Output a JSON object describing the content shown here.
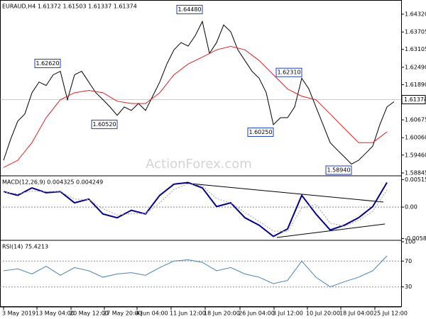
{
  "chart_data": [
    {
      "type": "line",
      "title": "EURAUD,H4 1.61372 1.61503 1.61337 1.61374",
      "watermark": "ActionForex.com",
      "xlim": [
        0,
        55
      ],
      "ylim": [
        1.5877,
        1.6476
      ],
      "yticks": [
        {
          "value": 1.6432,
          "label": "1.64320"
        },
        1.63705,
        1.63105,
        {
          "value": 1.6249,
          "label": "1.62490"
        },
        {
          "value": 1.6189,
          "label": "1.61890"
        },
        1.60675,
        {
          "value": 1.6006,
          "label": "1.60060"
        },
        {
          "value": 1.5946,
          "label": "1.59460"
        },
        1.58845
      ],
      "last": 1.61374,
      "series": [
        {
          "color": "#000000",
          "width": 1,
          "style": "solid",
          "x": [
            0,
            1,
            2,
            3,
            4,
            5,
            6,
            7,
            8,
            9,
            10,
            11,
            12,
            13,
            14,
            15,
            16,
            17,
            18,
            19,
            20,
            21,
            22,
            23,
            24,
            25,
            26,
            27,
            28,
            29,
            30,
            31,
            32,
            33,
            34,
            35,
            36,
            37,
            38,
            39,
            40,
            41,
            42,
            43,
            44,
            45,
            46,
            47,
            48,
            49,
            50,
            51,
            52,
            53,
            54,
            55
          ],
          "values": [
            1.5928,
            1.6001,
            1.6063,
            1.6088,
            1.6161,
            1.6198,
            1.6186,
            1.6223,
            1.6235,
            1.6137,
            1.6223,
            1.6235,
            1.6198,
            1.6161,
            1.6137,
            1.6112,
            1.6083,
            1.6112,
            1.61,
            1.6124,
            1.61,
            1.6149,
            1.6198,
            1.626,
            1.6309,
            1.6334,
            1.6322,
            1.6358,
            1.6407,
            1.6297,
            1.6334,
            1.6395,
            1.6371,
            1.6309,
            1.6272,
            1.6235,
            1.6211,
            1.6161,
            1.6051,
            1.6075,
            1.6075,
            1.6112,
            1.6211,
            1.6174,
            1.6112,
            1.6051,
            1.5989,
            1.5964,
            1.594,
            1.5915,
            1.5928,
            1.5952,
            1.5977,
            1.6051,
            1.6112,
            1.613
          ]
        },
        {
          "color": "#e02020",
          "width": 1,
          "style": "solid",
          "x": [
            0,
            2,
            4,
            6,
            8,
            10,
            12,
            14,
            16,
            18,
            20,
            22,
            24,
            26,
            28,
            30,
            32,
            34,
            36,
            38,
            40,
            42,
            44,
            46,
            48,
            50,
            52,
            54
          ],
          "values": [
            1.5903,
            1.5928,
            1.5989,
            1.6075,
            1.6137,
            1.6161,
            1.6169,
            1.6161,
            1.6132,
            1.6124,
            1.6124,
            1.6161,
            1.6223,
            1.626,
            1.6284,
            1.6309,
            1.6321,
            1.6309,
            1.6272,
            1.6223,
            1.6174,
            1.6149,
            1.6137,
            1.6088,
            1.6038,
            1.5989,
            1.5989,
            1.6026
          ]
        }
      ],
      "annotations": [
        {
          "label": "1.64480",
          "value": 1.6448,
          "x": 28
        },
        {
          "label": "1.62620",
          "value": 1.6262,
          "x": 8
        },
        {
          "label": "1.60520",
          "value": 1.6052,
          "x": 16
        },
        {
          "label": "1.60250",
          "value": 1.6025,
          "x": 38
        },
        {
          "label": "1.62310",
          "value": 1.6231,
          "x": 42
        },
        {
          "label": "1.58940",
          "value": 1.5894,
          "x": 49
        }
      ]
    },
    {
      "type": "line",
      "title": "MACD(12,26,9) 0.004325 0.004249",
      "xlim": [
        0,
        55
      ],
      "ylim": [
        -0.0061,
        0.0056
      ],
      "yticks": [
        0.005154,
        {
          "value": 0,
          "label": "0.00"
        },
        -0.005887
      ],
      "levels": [
        0
      ],
      "series": [
        {
          "color": "#00008b",
          "width": 2,
          "style": "solid",
          "x": [
            0,
            2,
            4,
            6,
            8,
            10,
            12,
            14,
            16,
            18,
            20,
            22,
            24,
            26,
            28,
            30,
            32,
            34,
            36,
            38,
            40,
            42,
            44,
            46,
            48,
            50,
            52,
            54
          ],
          "values": [
            0.0029,
            0.0022,
            0.0036,
            0.0027,
            0.0029,
            0.0008,
            0.0015,
            -0.0013,
            -0.002,
            -0.0006,
            -0.0013,
            0.0022,
            0.0043,
            0.0046,
            0.0036,
            0.0001,
            0.0008,
            -0.002,
            -0.0034,
            -0.0055,
            -0.0041,
            0.0022,
            -0.0013,
            -0.0043,
            -0.0034,
            -0.002,
            0.0001,
            0.0046
          ]
        },
        {
          "color": "#a0a0a0",
          "width": 1,
          "style": "dotted",
          "x": [
            0,
            2,
            4,
            6,
            8,
            10,
            12,
            14,
            16,
            18,
            20,
            22,
            24,
            26,
            28,
            30,
            32,
            34,
            36,
            38,
            40,
            42,
            44,
            46,
            48,
            50,
            52,
            54
          ],
          "values": [
            0.0028,
            0.0025,
            0.003,
            0.0029,
            0.0029,
            0.0015,
            0.0014,
            -0.0003,
            -0.0015,
            -0.0012,
            -0.0012,
            0.0008,
            0.0033,
            0.0044,
            0.004,
            0.0016,
            0.0008,
            -0.001,
            -0.0027,
            -0.0045,
            -0.0046,
            -0.0002,
            0.0005,
            -0.003,
            -0.0036,
            -0.0025,
            -0.0008,
            0.0032
          ]
        }
      ]
    },
    {
      "type": "line",
      "title": "RSI(14) 75.4213",
      "xlim": [
        0,
        55
      ],
      "ylim": [
        0,
        100
      ],
      "yticks": [
        100,
        70,
        30
      ],
      "levels": [
        70,
        30
      ],
      "xticks": [
        {
          "value": 0,
          "label": "3 May 2019"
        },
        {
          "value": 4.7,
          "label": "13 May 04:00"
        },
        {
          "value": 9.5,
          "label": "20 May 12:00"
        },
        {
          "value": 14.2,
          "label": "27 May 20:00"
        },
        {
          "value": 18.8,
          "label": "4 Jun 04:00"
        },
        {
          "value": 23.6,
          "label": "11 Jun 12:00"
        },
        {
          "value": 28.4,
          "label": "18 Jun 20:00"
        },
        {
          "value": 33.3,
          "label": "26 Jun 04:00"
        },
        {
          "value": 38.1,
          "label": "3 Jul 12:00"
        },
        {
          "value": 42.8,
          "label": "10 Jul 20:00"
        },
        {
          "value": 47.5,
          "label": "18 Jul 04:00"
        },
        {
          "value": 52.3,
          "label": "25 Jul 12:00"
        }
      ],
      "series": [
        {
          "color": "#4682b4",
          "width": 1,
          "style": "solid",
          "x": [
            0,
            2,
            4,
            6,
            8,
            10,
            12,
            14,
            16,
            18,
            20,
            22,
            24,
            26,
            28,
            30,
            32,
            34,
            36,
            38,
            40,
            42,
            44,
            46,
            48,
            50,
            52,
            54
          ],
          "values": [
            55,
            58,
            50,
            62,
            48,
            60,
            55,
            45,
            50,
            52,
            48,
            60,
            70,
            72,
            68,
            55,
            60,
            50,
            45,
            35,
            40,
            70,
            45,
            30,
            38,
            45,
            55,
            78
          ]
        }
      ]
    }
  ]
}
